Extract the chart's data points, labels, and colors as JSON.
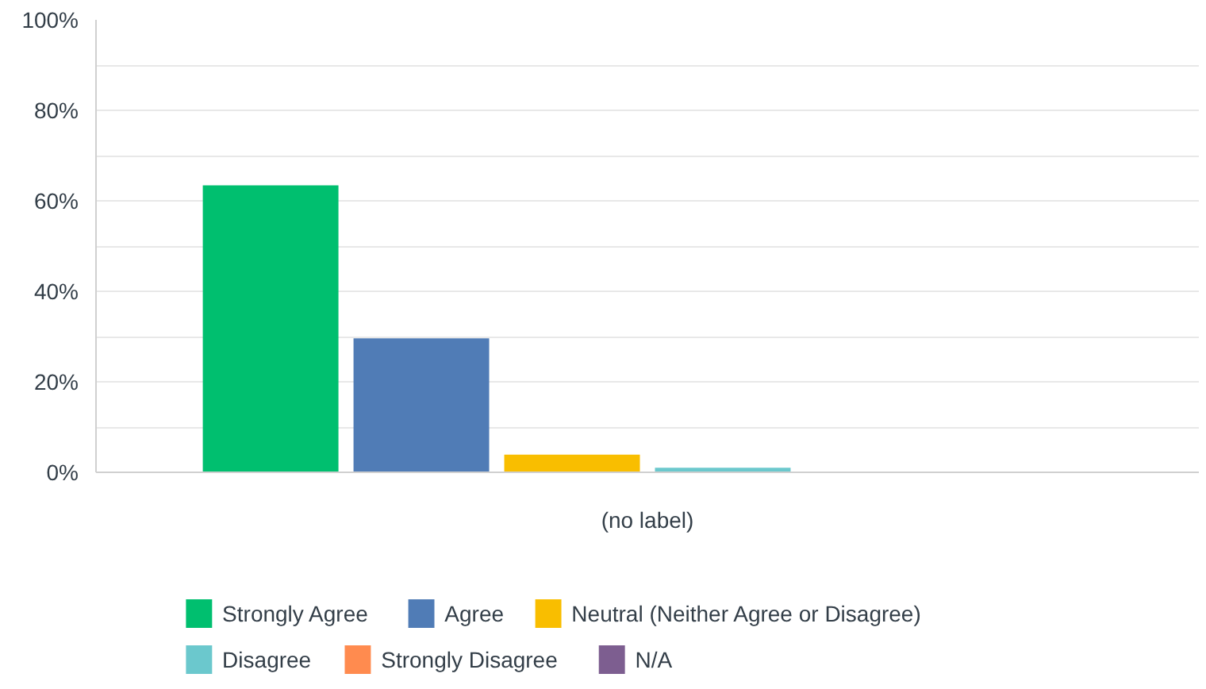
{
  "chart_data": {
    "type": "bar",
    "categories": [
      "(no label)"
    ],
    "series": [
      {
        "name": "Strongly Agree",
        "color": "#00bf6f",
        "values": [
          63.4
        ]
      },
      {
        "name": "Agree",
        "color": "#507cb6",
        "values": [
          29.6
        ]
      },
      {
        "name": "Neutral (Neither Agree or Disagree)",
        "color": "#f9be00",
        "values": [
          3.9
        ]
      },
      {
        "name": "Disagree",
        "color": "#6bc8cd",
        "values": [
          1.0
        ]
      },
      {
        "name": "Strongly Disagree",
        "color": "#ff8b4f",
        "values": [
          0
        ]
      },
      {
        "name": "N/A",
        "color": "#7d5e90",
        "values": [
          0
        ]
      }
    ],
    "ylim": [
      0,
      100
    ],
    "yticks": [
      {
        "value": 0,
        "label": "0%"
      },
      {
        "value": 10,
        "label": null
      },
      {
        "value": 20,
        "label": "20%"
      },
      {
        "value": 30,
        "label": null
      },
      {
        "value": 40,
        "label": "40%"
      },
      {
        "value": 50,
        "label": null
      },
      {
        "value": 60,
        "label": "60%"
      },
      {
        "value": 70,
        "label": null
      },
      {
        "value": 80,
        "label": "80%"
      },
      {
        "value": 90,
        "label": null
      },
      {
        "value": 100,
        "label": "100%"
      }
    ],
    "grid": "y",
    "legend": "bottom"
  }
}
